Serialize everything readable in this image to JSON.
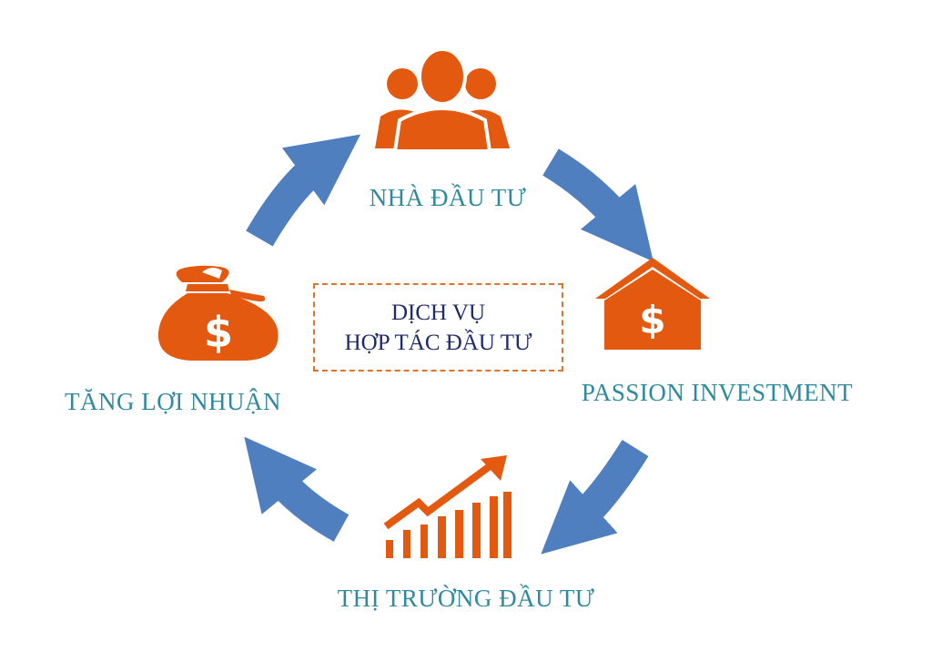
{
  "center": {
    "line1": "DỊCH VỤ",
    "line2": "HỢP TÁC ĐẦU TƯ"
  },
  "nodes": {
    "investors": {
      "label": "NHÀ ĐẦU TƯ",
      "icon": "people-group-icon"
    },
    "passion": {
      "label": "PASSION INVESTMENT",
      "icon": "dollar-house-icon"
    },
    "market": {
      "label": "THỊ TRƯỜNG ĐẦU TƯ",
      "icon": "growth-chart-icon"
    },
    "profit": {
      "label": "TĂNG LỢI NHUẬN",
      "icon": "money-bag-icon"
    }
  },
  "colors": {
    "icon": "#e2590f",
    "arrow": "#4f7fbf",
    "label": "#2e8a9c",
    "center_text": "#1f2a6b",
    "center_border": "#e0732c"
  }
}
